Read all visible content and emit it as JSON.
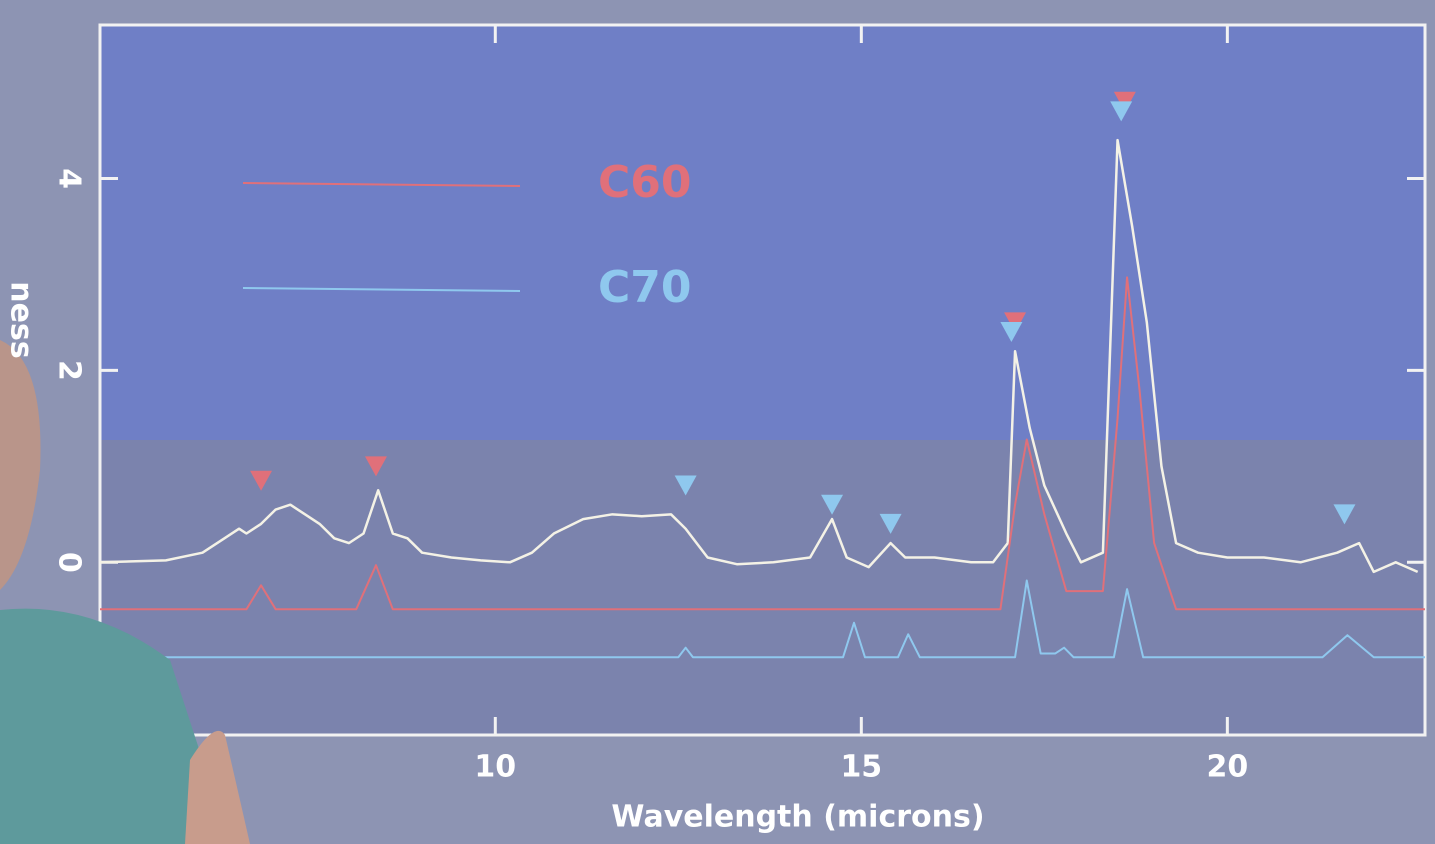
{
  "chart_data": {
    "type": "line",
    "x_label": "Wavelength (microns)",
    "y_label": "ness",
    "xlim": [
      4.6,
      22.7
    ],
    "ylim": [
      -1.8,
      5.6
    ],
    "xticks": [
      10,
      15,
      20
    ],
    "yticks": [
      0,
      2,
      4
    ],
    "series": [
      {
        "color": "#f4f2e6",
        "x": [
          4.6,
          5.5,
          6.0,
          6.3,
          6.5,
          6.6,
          6.8,
          7.0,
          7.2,
          7.4,
          7.6,
          7.8,
          8.0,
          8.2,
          8.4,
          8.6,
          8.8,
          9.0,
          9.4,
          9.8,
          10.2,
          10.5,
          10.8,
          11.2,
          11.6,
          12.0,
          12.4,
          12.6,
          12.9,
          13.3,
          13.8,
          14.3,
          14.6,
          14.8,
          15.1,
          15.4,
          15.6,
          16.0,
          16.5,
          16.8,
          17.0,
          17.1,
          17.3,
          17.5,
          17.8,
          18.0,
          18.3,
          18.5,
          18.7,
          18.9,
          19.1,
          19.3,
          19.6,
          20.0,
          20.5,
          21.0,
          21.5,
          21.8,
          22.0,
          22.3,
          22.6
        ],
        "values": [
          0,
          0.02,
          0.1,
          0.25,
          0.35,
          0.3,
          0.4,
          0.55,
          0.6,
          0.5,
          0.4,
          0.25,
          0.2,
          0.3,
          0.75,
          0.3,
          0.25,
          0.1,
          0.05,
          0.02,
          0.0,
          0.1,
          0.3,
          0.45,
          0.5,
          0.48,
          0.5,
          0.35,
          0.05,
          -0.02,
          0.0,
          0.05,
          0.45,
          0.05,
          -0.05,
          0.2,
          0.05,
          0.05,
          0.0,
          0.0,
          0.2,
          2.2,
          1.4,
          0.8,
          0.3,
          0.0,
          0.1,
          4.4,
          3.5,
          2.5,
          1.0,
          0.2,
          0.1,
          0.05,
          0.05,
          0.0,
          0.1,
          0.2,
          -0.1,
          0.0,
          -0.1
        ]
      },
      {
        "name": "C60",
        "color": "#e0707a",
        "x": [
          4.6,
          6.6,
          6.8,
          7.0,
          8.1,
          8.37,
          8.6,
          16.9,
          17.1,
          17.26,
          17.5,
          17.8,
          18.3,
          18.5,
          18.63,
          18.8,
          19.0,
          19.3,
          22.7
        ],
        "values": [
          -0.49,
          -0.49,
          -0.24,
          -0.49,
          -0.49,
          -0.03,
          -0.49,
          -0.49,
          0.6,
          1.28,
          0.5,
          -0.3,
          -0.3,
          1.5,
          2.97,
          1.8,
          0.2,
          -0.49,
          -0.49
        ],
        "markers": {
          "x": [
            6.8,
            8.37,
            17.1,
            18.6
          ],
          "values": [
            0.85,
            1.0,
            2.5,
            4.8
          ]
        }
      },
      {
        "name": "C70",
        "color": "#8fc8ee",
        "x": [
          4.6,
          12.5,
          12.6,
          12.7,
          14.75,
          14.9,
          15.05,
          15.5,
          15.64,
          15.8,
          17.1,
          17.26,
          17.45,
          17.65,
          17.77,
          17.9,
          18.45,
          18.63,
          18.85,
          21.3,
          21.64,
          22.0,
          22.7
        ],
        "values": [
          -0.99,
          -0.99,
          -0.89,
          -0.99,
          -0.99,
          -0.63,
          -0.99,
          -0.99,
          -0.75,
          -0.99,
          -0.99,
          -0.19,
          -0.95,
          -0.95,
          -0.89,
          -0.99,
          -0.99,
          -0.28,
          -0.99,
          -0.99,
          -0.76,
          -0.99,
          -0.99
        ],
        "markers": {
          "x": [
            12.6,
            14.6,
            15.4,
            17.05,
            18.55,
            21.6
          ],
          "values": [
            0.8,
            0.6,
            0.4,
            2.4,
            4.7,
            0.5
          ]
        }
      }
    ]
  }
}
